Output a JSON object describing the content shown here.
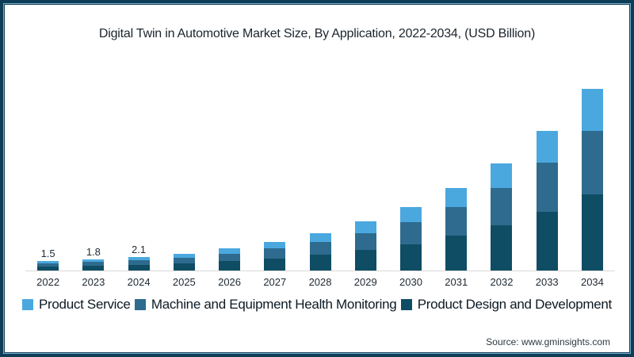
{
  "chart_data": {
    "type": "bar",
    "stacked": true,
    "title": "Digital Twin in Automotive Market Size, By Application, 2022-2034, (USD Billion)",
    "unit": "USD Billion",
    "categories": [
      "2022",
      "2023",
      "2024",
      "2025",
      "2026",
      "2027",
      "2028",
      "2029",
      "2030",
      "2031",
      "2032",
      "2033",
      "2034"
    ],
    "series": [
      {
        "name": "Product Design and Development",
        "color": "#0e4d64",
        "values": [
          0.63,
          0.76,
          0.88,
          1.13,
          1.47,
          1.93,
          2.52,
          3.28,
          4.24,
          5.54,
          7.18,
          9.37,
          12.18
        ]
      },
      {
        "name": "Machine and Equipment Health Monitoring",
        "color": "#2e6b8e",
        "values": [
          0.53,
          0.63,
          0.74,
          0.95,
          1.23,
          1.61,
          2.1,
          2.73,
          3.54,
          4.62,
          5.99,
          7.81,
          10.15
        ]
      },
      {
        "name": "Product Service",
        "color": "#4aa8df",
        "values": [
          0.34,
          0.41,
          0.48,
          0.62,
          0.8,
          1.06,
          1.38,
          1.79,
          2.32,
          3.04,
          3.93,
          5.12,
          6.67
        ]
      }
    ],
    "totals": [
      1.5,
      1.8,
      2.1,
      2.7,
      3.5,
      4.6,
      6.0,
      7.8,
      10.1,
      13.2,
      17.1,
      22.3,
      29.0
    ],
    "data_labels": [
      "1.5",
      "1.8",
      "2.1",
      "",
      "",
      "",
      "",
      "",
      "",
      "",
      "",
      "",
      ""
    ],
    "ylim": [
      0,
      30
    ],
    "y_axis_visible": false,
    "gridlines": false,
    "legend_position": "bottom",
    "legend": [
      {
        "label": "Product Service",
        "color": "#4aa8df"
      },
      {
        "label": "Machine and Equipment Health Monitoring",
        "color": "#2e6b8e"
      },
      {
        "label": "Product Design and Development",
        "color": "#0e4d64"
      }
    ]
  },
  "source": "Source: www.gminsights.com",
  "theme": {
    "border_color": "#0e3d58",
    "border_inner_line": "#7fb0ce",
    "axis_line_color": "#d9d9d9",
    "background": "#ffffff"
  }
}
